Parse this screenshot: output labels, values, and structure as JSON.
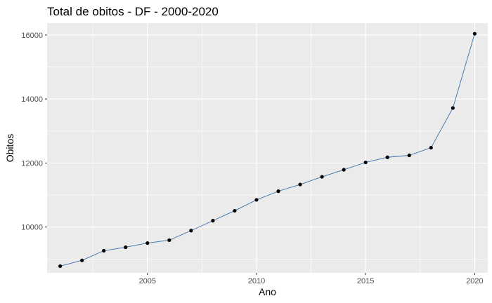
{
  "chart_data": {
    "type": "line",
    "title": "Total de obitos - DF - 2000-2020",
    "xlabel": "Ano",
    "ylabel": "Obitos",
    "xlim": [
      2000.4,
      2020.6
    ],
    "ylim": [
      8570,
      16370
    ],
    "x_ticks": [
      2005,
      2010,
      2015,
      2020
    ],
    "y_ticks": [
      10000,
      12000,
      14000,
      16000
    ],
    "x_minor_ticks": [
      2002.5,
      2007.5,
      2012.5,
      2017.5
    ],
    "y_minor_ticks": [
      9000,
      11000,
      13000,
      15000
    ],
    "grid": true,
    "panel_background": "#ebebeb",
    "grid_color": "#ffffff",
    "line_color": "#3a6ea5",
    "point_color": "#000000",
    "series": [
      {
        "x": [
          2001,
          2002,
          2003,
          2004,
          2005,
          2006,
          2007,
          2008,
          2009,
          2010,
          2011,
          2012,
          2013,
          2014,
          2015,
          2016,
          2017,
          2018,
          2019,
          2020
        ],
        "values": [
          8780,
          8960,
          9260,
          9370,
          9500,
          9590,
          9890,
          10200,
          10510,
          10850,
          11120,
          11330,
          11570,
          11790,
          12020,
          12180,
          12240,
          12480,
          13720,
          16040
        ]
      }
    ]
  }
}
